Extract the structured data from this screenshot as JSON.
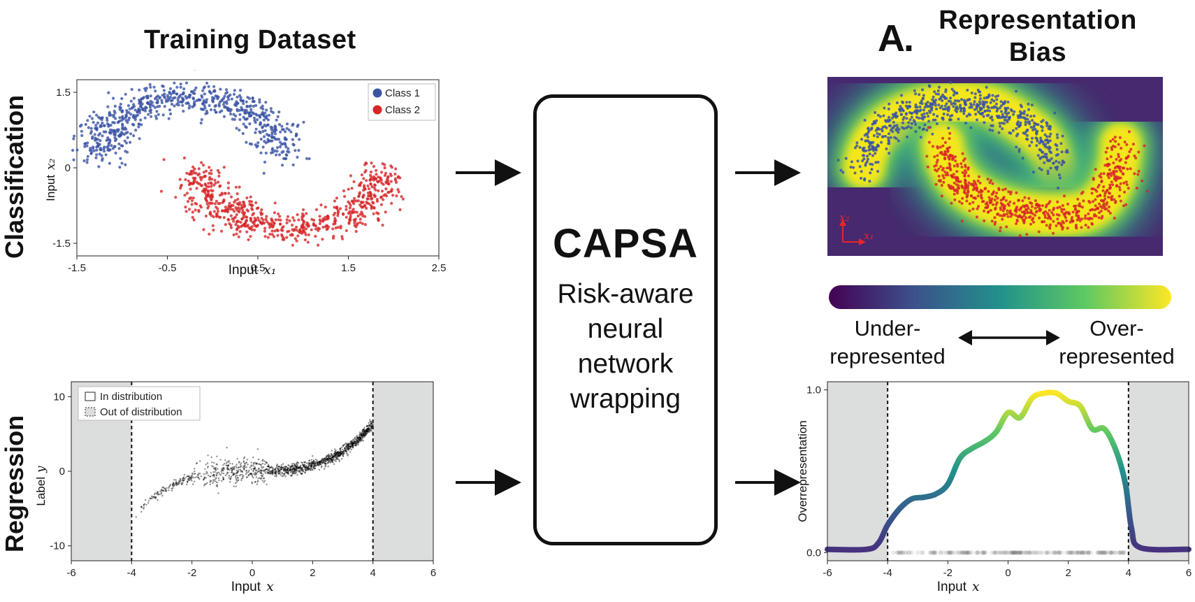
{
  "header": {
    "training_title": "Training Dataset",
    "letter": "A.",
    "bias_title_line1": "Representation",
    "bias_title_line2": "Bias"
  },
  "rows": {
    "classification": "Classification",
    "regression": "Regression"
  },
  "capsa": {
    "title": "CAPSA",
    "subtitle_lines": [
      "Risk-aware",
      "neural",
      "network",
      "wrapping"
    ]
  },
  "colorbar": {
    "left_line1": "Under-",
    "left_line2": "represented",
    "right_line1": "Over-",
    "right_line2": "represented",
    "colors": [
      "#440154",
      "#3b528b",
      "#21918c",
      "#5ec962",
      "#fde725"
    ]
  },
  "chart_data": [
    {
      "type": "scatter",
      "x_ticks": [
        "-1.5",
        "-0.5",
        "0.5",
        "1.5",
        "2.5"
      ],
      "y_ticks": [
        "1.5",
        "0",
        "-1.5"
      ],
      "xlabel": "Input",
      "xlabel_math": "x₁",
      "ylabel": "Input",
      "ylabel_math": "x₂",
      "xlim": [
        -1.5,
        2.5
      ],
      "ylim": [
        -1.75,
        1.75
      ],
      "legend": {
        "position": "top-right",
        "entries": [
          "Class 1",
          "Class 2"
        ]
      },
      "series": [
        {
          "name": "Class 1",
          "color": "#3a53a4",
          "shape": "upper moon",
          "center": [
            0,
            0
          ],
          "radius": 1.0,
          "noise": 0.1,
          "angle_range_deg": [
            0,
            180
          ]
        },
        {
          "name": "Class 2",
          "color": "#d62728",
          "shape": "lower moon",
          "center": [
            1,
            0.5
          ],
          "radius": 1.0,
          "noise": 0.1,
          "angle_range_deg": [
            180,
            360
          ]
        }
      ]
    },
    {
      "type": "scatter",
      "x_ticks": [
        "-6",
        "-4",
        "-2",
        "0",
        "2",
        "4",
        "6"
      ],
      "y_ticks": [
        "10",
        "0",
        "-10"
      ],
      "xlabel": "Input",
      "xlabel_math": "x",
      "ylabel": "Label",
      "ylabel_math": "y",
      "xlim": [
        -6,
        6
      ],
      "ylim": [
        -12,
        12
      ],
      "in_distribution": [
        -4,
        4
      ],
      "legend": {
        "position": "top-left",
        "entries": [
          "In distribution",
          "Out of distribution"
        ]
      },
      "series": [
        {
          "name": "",
          "function": "y = x^3 / 10",
          "x_range": [
            -4,
            4
          ],
          "color": "#000000"
        }
      ]
    },
    {
      "type": "heatmap",
      "description_of_content": "density heatmap of two-moons dataset with overlaid Class 1 and Class 2 points",
      "axis_labels": [
        "x₂",
        "x₁"
      ],
      "colormap": "viridis"
    },
    {
      "type": "line",
      "x_ticks": [
        "-6",
        "-4",
        "-2",
        "0",
        "2",
        "4",
        "6"
      ],
      "y_ticks": [
        "1.0",
        "0.0"
      ],
      "xlabel": "Input",
      "xlabel_math": "x",
      "ylabel": "Overrepresentation",
      "xlim": [
        -6,
        6
      ],
      "ylim": [
        -0.05,
        1.05
      ],
      "in_distribution": [
        -4,
        4
      ],
      "series": [
        {
          "name": "",
          "x": [
            -6,
            -4.7,
            -4.3,
            -4.0,
            -3.6,
            -3.2,
            -2.8,
            -2.4,
            -2.0,
            -1.6,
            -1.2,
            -0.8,
            -0.4,
            0.0,
            0.4,
            0.8,
            1.2,
            1.6,
            2.0,
            2.4,
            2.8,
            3.2,
            3.6,
            3.9,
            4.1,
            4.4,
            6
          ],
          "values": [
            0.02,
            0.02,
            0.06,
            0.17,
            0.27,
            0.33,
            0.34,
            0.36,
            0.42,
            0.58,
            0.64,
            0.68,
            0.74,
            0.86,
            0.83,
            0.95,
            0.98,
            0.98,
            0.93,
            0.9,
            0.76,
            0.76,
            0.62,
            0.42,
            0.15,
            0.03,
            0.02
          ]
        }
      ],
      "rug_range": [
        -3.9,
        3.9
      ]
    }
  ]
}
